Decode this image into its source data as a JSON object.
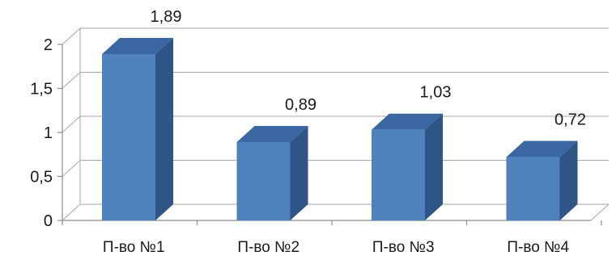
{
  "chart_data": {
    "type": "bar",
    "categories": [
      "П-во №1",
      "П-во №2",
      "П-во №3",
      "П-во №4"
    ],
    "values": [
      1.89,
      0.89,
      1.03,
      0.72
    ],
    "data_labels": [
      "1,89",
      "0,89",
      "1,03",
      "0,72"
    ],
    "ylim": [
      0,
      2
    ],
    "yticks": [
      0,
      0.5,
      1,
      1.5,
      2
    ],
    "ytick_labels": [
      "0",
      "0,5",
      "1",
      "1,5",
      "2"
    ],
    "grid": true,
    "style": "3d-column",
    "colors": {
      "bar_front": "#4f81bd",
      "bar_side": "#2e5586",
      "bar_top": "#3a66a2",
      "grid": "#a6a6a6"
    }
  }
}
